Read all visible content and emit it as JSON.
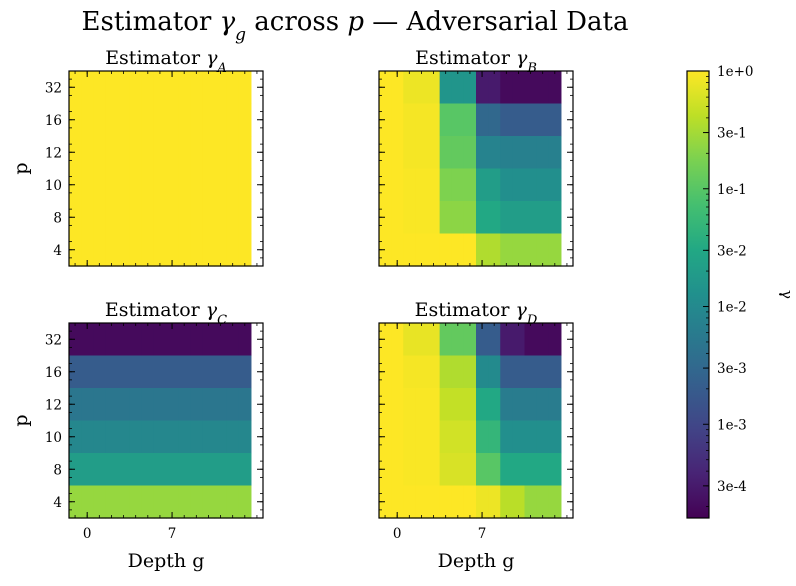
{
  "chart_data": {
    "type": "heatmap",
    "title": "Estimator γ_g across p — Adversarial Data",
    "colormap": "viridis",
    "color_scale": "log",
    "colorbar": {
      "label": "γ",
      "range": [
        0.00016,
        1.0
      ],
      "ticks": [
        {
          "value": 1.0,
          "label": "1e+0"
        },
        {
          "value": 0.3,
          "label": "3e-1"
        },
        {
          "value": 0.1,
          "label": "1e-1"
        },
        {
          "value": 0.03,
          "label": "3e-2"
        },
        {
          "value": 0.01,
          "label": "1e-2"
        },
        {
          "value": 0.003,
          "label": "3e-3"
        },
        {
          "value": 0.001,
          "label": "1e-3"
        },
        {
          "value": 0.0003,
          "label": "3e-4"
        }
      ]
    },
    "xlabel": "Depth g",
    "ylabel": "p",
    "x_ticks": [
      {
        "value": 0,
        "label": "0"
      },
      {
        "value": 7,
        "label": "7"
      }
    ],
    "y_ticks": [
      "4",
      "8",
      "10",
      "12",
      "16",
      "32"
    ],
    "depth": [
      -1,
      0,
      1,
      2,
      3,
      4,
      5,
      6,
      7,
      8,
      9,
      10,
      11,
      12,
      13
    ],
    "x_range": [
      -1.5,
      14.5
    ],
    "p_rows": [
      "32",
      "16",
      "12",
      "10",
      "8",
      "4"
    ],
    "panels": [
      {
        "title_prefix": "Estimator ",
        "symbol": "γ",
        "subscript": "A",
        "values": [
          [
            1,
            1,
            1,
            1,
            1,
            1,
            1,
            1,
            1,
            1,
            1,
            1,
            1,
            1,
            1
          ],
          [
            1,
            1,
            1,
            1,
            1,
            1,
            1,
            1,
            1,
            1,
            1,
            1,
            1,
            1,
            1
          ],
          [
            1,
            1,
            1,
            1,
            1,
            1,
            1,
            1,
            1,
            1,
            1,
            1,
            1,
            1,
            1
          ],
          [
            1,
            1,
            1,
            1,
            1,
            1,
            1,
            1,
            1,
            1,
            1,
            1,
            1,
            1,
            1
          ],
          [
            1,
            1,
            1,
            1,
            1,
            1,
            1,
            1,
            1,
            1,
            1,
            1,
            1,
            1,
            1
          ],
          [
            1,
            1,
            1,
            1,
            1,
            1,
            1,
            1,
            1,
            1,
            1,
            1,
            1,
            1,
            1
          ]
        ]
      },
      {
        "title_prefix": "Estimator ",
        "symbol": "γ",
        "subscript": "B",
        "values": [
          [
            1,
            1,
            0.8,
            0.8,
            0.8,
            0.015,
            0.015,
            0.015,
            0.0003,
            0.0003,
            0.0002,
            0.0002,
            0.0002,
            0.0002,
            0.0002
          ],
          [
            1,
            1,
            0.9,
            0.9,
            0.9,
            0.1,
            0.1,
            0.1,
            0.003,
            0.003,
            0.002,
            0.002,
            0.002,
            0.002,
            0.002
          ],
          [
            1,
            1,
            0.9,
            0.9,
            0.9,
            0.12,
            0.12,
            0.12,
            0.008,
            0.008,
            0.007,
            0.007,
            0.007,
            0.007,
            0.007
          ],
          [
            1,
            1,
            0.95,
            0.95,
            0.95,
            0.18,
            0.18,
            0.18,
            0.02,
            0.02,
            0.012,
            0.012,
            0.012,
            0.012,
            0.012
          ],
          [
            1,
            1,
            0.95,
            0.95,
            0.95,
            0.22,
            0.22,
            0.22,
            0.03,
            0.03,
            0.02,
            0.02,
            0.02,
            0.02,
            0.02
          ],
          [
            1,
            1,
            1,
            1,
            1,
            1,
            1,
            1,
            0.35,
            0.35,
            0.25,
            0.25,
            0.25,
            0.25,
            0.25
          ]
        ]
      },
      {
        "title_prefix": "Estimator ",
        "symbol": "γ",
        "subscript": "C",
        "values": [
          [
            0.0002,
            0.0002,
            0.0002,
            0.0002,
            0.0002,
            0.0002,
            0.0002,
            0.0002,
            0.0002,
            0.0002,
            0.0002,
            0.0002,
            0.0002,
            0.0002,
            0.0002
          ],
          [
            0.002,
            0.002,
            0.002,
            0.002,
            0.002,
            0.002,
            0.002,
            0.002,
            0.002,
            0.002,
            0.002,
            0.002,
            0.002,
            0.002,
            0.002
          ],
          [
            0.005,
            0.005,
            0.005,
            0.005,
            0.005,
            0.005,
            0.005,
            0.005,
            0.005,
            0.005,
            0.005,
            0.005,
            0.005,
            0.005,
            0.005
          ],
          [
            0.009,
            0.009,
            0.009,
            0.009,
            0.009,
            0.009,
            0.009,
            0.009,
            0.009,
            0.009,
            0.009,
            0.009,
            0.009,
            0.009,
            0.009
          ],
          [
            0.02,
            0.02,
            0.02,
            0.02,
            0.02,
            0.02,
            0.02,
            0.02,
            0.02,
            0.02,
            0.02,
            0.02,
            0.02,
            0.02,
            0.02
          ],
          [
            0.25,
            0.25,
            0.25,
            0.25,
            0.25,
            0.25,
            0.25,
            0.25,
            0.25,
            0.25,
            0.25,
            0.25,
            0.25,
            0.25,
            0.25
          ]
        ]
      },
      {
        "title_prefix": "Estimator ",
        "symbol": "γ",
        "subscript": "D",
        "values": [
          [
            1,
            1,
            0.75,
            0.75,
            0.75,
            0.12,
            0.12,
            0.12,
            0.002,
            0.002,
            0.0003,
            0.0003,
            0.0002,
            0.0002,
            0.0002
          ],
          [
            1,
            1,
            0.9,
            0.9,
            0.9,
            0.35,
            0.35,
            0.35,
            0.01,
            0.01,
            0.002,
            0.002,
            0.002,
            0.002,
            0.002
          ],
          [
            1,
            1,
            0.95,
            0.95,
            0.95,
            0.45,
            0.45,
            0.45,
            0.03,
            0.03,
            0.006,
            0.006,
            0.006,
            0.006,
            0.006
          ],
          [
            1,
            1,
            0.95,
            0.95,
            0.95,
            0.55,
            0.55,
            0.55,
            0.05,
            0.05,
            0.012,
            0.012,
            0.012,
            0.012,
            0.012
          ],
          [
            1,
            1,
            0.95,
            0.95,
            0.95,
            0.6,
            0.6,
            0.6,
            0.1,
            0.1,
            0.03,
            0.03,
            0.03,
            0.03,
            0.03
          ],
          [
            1,
            1,
            1,
            1,
            1,
            1,
            1,
            1,
            0.8,
            0.8,
            0.4,
            0.4,
            0.25,
            0.25,
            0.25
          ]
        ]
      }
    ]
  }
}
